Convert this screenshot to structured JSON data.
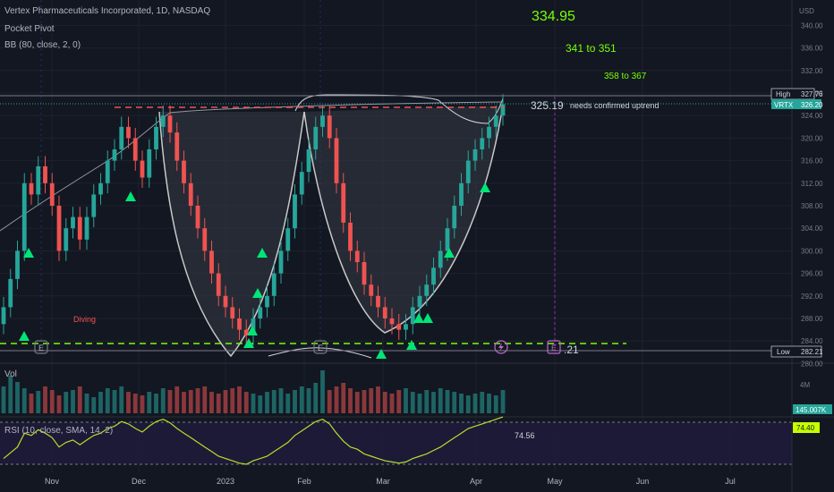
{
  "header": {
    "symbol_line": "Vertex Pharmaceuticals Incorporated, 1D, NASDAQ",
    "indicator_1": "Pocket Pivot",
    "indicator_2": "BB (80, close, 2, 0)"
  },
  "volume_pane": {
    "label": "Vol",
    "axis_label": "4M",
    "last_value": "145.007K"
  },
  "rsi_pane": {
    "label": "RSI (10, close, SMA, 14, 2)",
    "value_label": "74.56",
    "badge": "74.40",
    "ylim": [
      20,
      90
    ],
    "bands": [
      30,
      70
    ]
  },
  "price_axis": {
    "currency": "USD",
    "ticks": [
      "340.00",
      "336.00",
      "332.00",
      "328.00",
      "324.00",
      "320.00",
      "316.00",
      "312.00",
      "308.00",
      "304.00",
      "300.00",
      "296.00",
      "292.00",
      "288.00",
      "284.00",
      "280.00"
    ],
    "high_label": "High",
    "high_value": "327.76",
    "sym_label": "VRTX",
    "sym_value": "326.20",
    "low_label": "Low",
    "low_value": "282.21"
  },
  "annotations": {
    "target_main": "334.95",
    "target_1": "341 to 351",
    "target_2": "358 to 367",
    "neckline_value": "325.19",
    "neckline_note": "needs confirmed uptrend",
    "support_value": "283.21",
    "support_label": ".21",
    "diving": "Diving"
  },
  "events": {
    "earnings_label": "E"
  },
  "colors": {
    "up": "#26a69a",
    "down": "#ef5350",
    "marker": "#00e676",
    "target": "#76ff03",
    "neckline": "#ef5350",
    "support": "#76ff03",
    "background": "#131722"
  },
  "chart_data": {
    "type": "candlestick",
    "title": "Vertex Pharmaceuticals Incorporated, 1D, NASDAQ",
    "x_tick_labels": [
      "Nov",
      "Dec",
      "2023",
      "Feb",
      "Mar",
      "Apr",
      "May",
      "Jun",
      "Jul"
    ],
    "ylim": [
      280,
      342
    ],
    "series": [
      {
        "name": "VRTX close (approx.)",
        "values": [
          290,
          295,
          300,
          312,
          310,
          315,
          312,
          308,
          300,
          304,
          306,
          302,
          306,
          310,
          312,
          316,
          318,
          322,
          320,
          316,
          313,
          318,
          322,
          324,
          321,
          316,
          312,
          308,
          304,
          300,
          296,
          292,
          290,
          288,
          286,
          285,
          288,
          290,
          292,
          296,
          300,
          304,
          310,
          314,
          318,
          322,
          324,
          320,
          312,
          305,
          300,
          298,
          294,
          292,
          290,
          288,
          287,
          286,
          287,
          290,
          292,
          294,
          297,
          300,
          304,
          308,
          312,
          316,
          318,
          320,
          322,
          324,
          326
        ]
      }
    ],
    "levels": [
      {
        "name": "neckline",
        "value": 325.19
      },
      {
        "name": "support",
        "value": 283.21
      }
    ],
    "targets": [
      "334.95",
      "341 to 351",
      "358 to 367"
    ],
    "legend": "top-left",
    "grid": true
  }
}
